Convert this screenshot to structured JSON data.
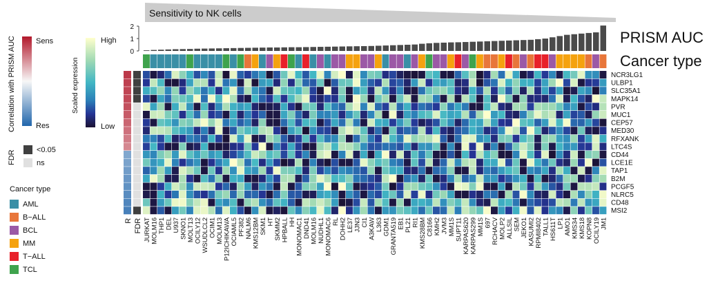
{
  "chart_data": {
    "type": "heatmap",
    "title": "Sensitivity to NK cells",
    "auc_label": "PRISM AUC",
    "cancer_type_label": "Cancer type",
    "auc_axis": {
      "ticks": [
        "0",
        "1",
        "2"
      ],
      "ylim": [
        0,
        2
      ]
    },
    "legends": {
      "correlation": {
        "title": "Correlation with PRISM AUC",
        "high": "Sens",
        "low": "Res",
        "colors": [
          "#b2182b",
          "#ffffff",
          "#2166ac"
        ]
      },
      "expression": {
        "title": "Scaled expression",
        "high": "High",
        "low": "Low",
        "colors": [
          "#ffffcc",
          "#a1dab4",
          "#41b6c4",
          "#2c7fb8",
          "#253494",
          "#1b1233"
        ]
      },
      "fdr": {
        "title": "FDR",
        "items": [
          {
            "label": "<0.05",
            "color": "#404040"
          },
          {
            "label": "ns",
            "color": "#e0e0e0"
          }
        ]
      },
      "cancer_type": {
        "title": "Cancer type",
        "items": [
          {
            "label": "AML",
            "color": "#3a8fa6"
          },
          {
            "label": "B−ALL",
            "color": "#e8763a"
          },
          {
            "label": "BCL",
            "color": "#9b59a6"
          },
          {
            "label": "MM",
            "color": "#f5a20f"
          },
          {
            "label": "T−ALL",
            "color": "#e8212a"
          },
          {
            "label": "TCL",
            "color": "#3fa34d"
          }
        ]
      }
    },
    "row_side_labels": [
      "R",
      "FDR"
    ],
    "genes": [
      "NCR3LG1",
      "ULBP1",
      "SLC35A1",
      "MAPK14",
      "PVR",
      "MUC1",
      "CEP57",
      "MED30",
      "RFXANK",
      "LTC4S",
      "CD44",
      "LCE1E",
      "TAP1",
      "B2M",
      "PCGF5",
      "NLRC5",
      "CD48",
      "MSI2"
    ],
    "gene_correlation": [
      0.85,
      0.82,
      0.8,
      0.78,
      0.75,
      0.7,
      0.65,
      0.6,
      0.55,
      0.5,
      -0.55,
      -0.58,
      -0.62,
      -0.66,
      -0.7,
      -0.74,
      -0.78,
      -0.82
    ],
    "gene_fdr": [
      "<0.05",
      "<0.05",
      "<0.05",
      "<0.05",
      "ns",
      "ns",
      "ns",
      "ns",
      "ns",
      "ns",
      "ns",
      "ns",
      "ns",
      "ns",
      "ns",
      "ns",
      "ns",
      "<0.05"
    ],
    "cell_lines": [
      "JURKAT",
      "MOLM16",
      "THP1",
      "DEL",
      "U937",
      "SKNO1",
      "MOLT13",
      "OCILY12",
      "WSUDLCL2",
      "OCIM1",
      "MOLM13",
      "P12ICHIKAWA",
      "OCIAML5",
      "PF382",
      "NALM6",
      "KMS12BM",
      "SKM1",
      "HT",
      "SKMM2",
      "HPBALL",
      "HH",
      "MONOMAC1",
      "DND41",
      "MOLM16",
      "NUDHL1",
      "MONOMAC6",
      "RL",
      "DOHH2",
      "LE37",
      "JJN3",
      "CI1",
      "A3KAW",
      "L363",
      "GDM1",
      "GRANTA519",
      "EB1",
      "PL21",
      "RI1",
      "KMS28BM",
      "C8166",
      "KMH2",
      "JVM3",
      "MM1S",
      "SUPT11",
      "KARPAS620",
      "KARPAS299",
      "MM1S",
      "697",
      "RCHACV",
      "MOLP2",
      "ALLSIL",
      "SEM",
      "JEKO1",
      "KASUMI2",
      "RPMI8402",
      "TALL1",
      "HS611T",
      "LP1",
      "AMO1",
      "KMS34",
      "KMS18",
      "KOPN8",
      "OCILY19",
      "JM1"
    ],
    "cancer_types": [
      "TCL",
      "AML",
      "AML",
      "AML",
      "AML",
      "AML",
      "TCL",
      "AML",
      "AML",
      "AML",
      "AML",
      "TCL",
      "AML",
      "TCL",
      "B−ALL",
      "MM",
      "AML",
      "BCL",
      "MM",
      "T−ALL",
      "TCL",
      "AML",
      "T−ALL",
      "AML",
      "BCL",
      "AML",
      "BCL",
      "BCL",
      "MM",
      "MM",
      "BCL",
      "BCL",
      "MM",
      "AML",
      "BCL",
      "BCL",
      "AML",
      "BCL",
      "MM",
      "TCL",
      "BCL",
      "BCL",
      "MM",
      "T−ALL",
      "BCL",
      "TCL",
      "MM",
      "B−ALL",
      "B−ALL",
      "MM",
      "T−ALL",
      "B−ALL",
      "BCL",
      "B−ALL",
      "T−ALL",
      "T−ALL",
      "BCL",
      "MM",
      "MM",
      "MM",
      "MM",
      "B−ALL",
      "BCL",
      "B−ALL"
    ],
    "prism_auc": [
      0.05,
      0.08,
      0.1,
      0.12,
      0.14,
      0.15,
      0.16,
      0.18,
      0.19,
      0.2,
      0.21,
      0.22,
      0.23,
      0.24,
      0.25,
      0.26,
      0.27,
      0.28,
      0.28,
      0.29,
      0.3,
      0.3,
      0.31,
      0.32,
      0.33,
      0.34,
      0.35,
      0.36,
      0.37,
      0.38,
      0.39,
      0.4,
      0.42,
      0.44,
      0.46,
      0.48,
      0.5,
      0.52,
      0.58,
      0.62,
      0.65,
      0.67,
      0.69,
      0.7,
      0.72,
      0.74,
      0.76,
      0.78,
      0.8,
      0.82,
      0.84,
      0.86,
      0.88,
      0.9,
      0.95,
      1.0,
      1.1,
      1.2,
      1.3,
      1.35,
      1.4,
      1.45,
      1.5,
      2.05
    ],
    "expression_seed": 17
  }
}
